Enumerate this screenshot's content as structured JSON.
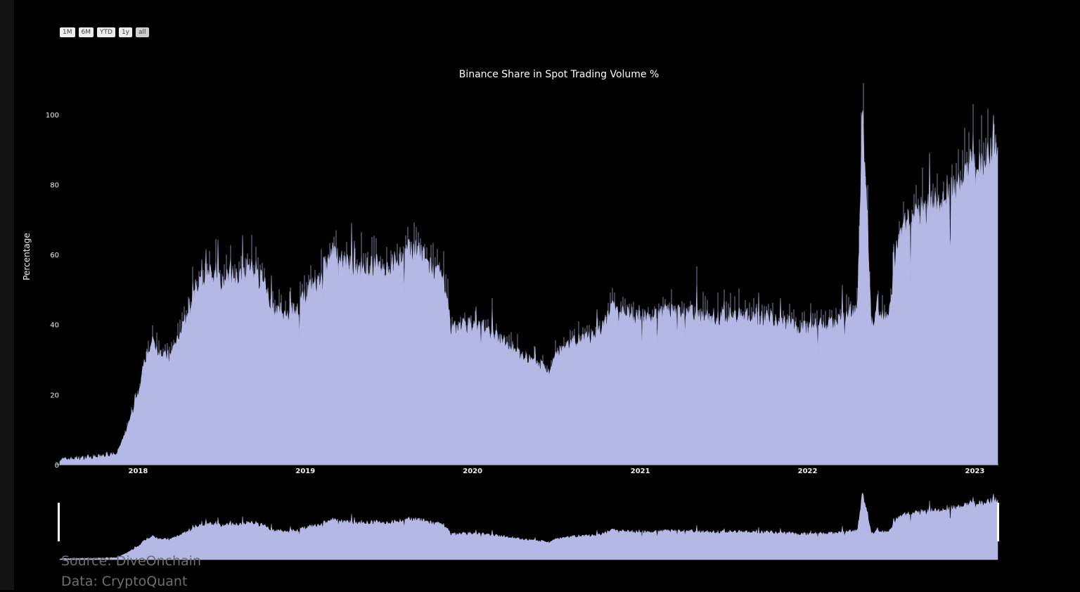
{
  "range_selector": [
    "1M",
    "6M",
    "YTD",
    "1y",
    "all"
  ],
  "active_range": "all",
  "source": {
    "line1": "Source: DiveOnchain",
    "line2": "Data: CryptoQuant"
  },
  "colors": {
    "background": "#000000",
    "fill": "#b3b9e4",
    "text": "#eeeeee"
  },
  "chart_data": {
    "type": "area",
    "title": "Binance Share in Spot Trading Volume %",
    "xlabel": "",
    "ylabel": "Percentage",
    "ylim": [
      0,
      113
    ],
    "xlim": [
      "2017-07-14",
      "2023-02-20"
    ],
    "yticks": [
      0,
      20,
      40,
      60,
      80,
      100
    ],
    "xticks": [
      "2018",
      "2019",
      "2020",
      "2021",
      "2022",
      "2023"
    ],
    "grid": false,
    "legend": "none",
    "range_slider": true,
    "series": [
      {
        "x": [
          "2017-07-14",
          "2017-09-15",
          "2017-10-15",
          "2017-11-15",
          "2017-12-01",
          "2017-12-20",
          "2018-01-05",
          "2018-01-15",
          "2018-02-01",
          "2018-02-20",
          "2018-03-10",
          "2018-04-01",
          "2018-04-20",
          "2018-05-10",
          "2018-06-01",
          "2018-07-01",
          "2018-08-01",
          "2018-09-01",
          "2018-10-01",
          "2018-10-25",
          "2018-11-20",
          "2018-12-15",
          "2019-01-10",
          "2019-02-01",
          "2019-03-01",
          "2019-04-01",
          "2019-05-01",
          "2019-06-01",
          "2019-07-01",
          "2019-08-01",
          "2019-09-01",
          "2019-09-20",
          "2019-10-10",
          "2019-11-01",
          "2019-11-15",
          "2019-12-01",
          "2020-01-01",
          "2020-02-01",
          "2020-03-01",
          "2020-04-01",
          "2020-05-01",
          "2020-06-01",
          "2020-06-15",
          "2020-07-01",
          "2020-08-01",
          "2020-09-01",
          "2020-10-01",
          "2020-11-01",
          "2020-12-01",
          "2021-01-01",
          "2021-02-01",
          "2021-03-01",
          "2021-04-01",
          "2021-05-01",
          "2021-06-01",
          "2021-07-01",
          "2021-08-01",
          "2021-09-01",
          "2021-10-01",
          "2021-11-01",
          "2021-12-01",
          "2022-01-01",
          "2022-02-01",
          "2022-03-01",
          "2022-04-01",
          "2022-04-20",
          "2022-05-01",
          "2022-05-10",
          "2022-05-20",
          "2022-06-01",
          "2022-06-20",
          "2022-07-01",
          "2022-07-15",
          "2022-08-01",
          "2022-09-01",
          "2022-10-01",
          "2022-11-01",
          "2022-12-01",
          "2023-01-01",
          "2023-02-01",
          "2023-02-20"
        ],
        "y": [
          1.5,
          2,
          2.5,
          3,
          8,
          15,
          22,
          30,
          35,
          32,
          30,
          38,
          42,
          50,
          55,
          52,
          54,
          56,
          52,
          44,
          42,
          45,
          50,
          52,
          60,
          58,
          55,
          57,
          56,
          60,
          62,
          58,
          55,
          52,
          38,
          40,
          40,
          38,
          36,
          33,
          30,
          28,
          25,
          32,
          35,
          36,
          37,
          45,
          43,
          42,
          42,
          44,
          44,
          43,
          42,
          42,
          43,
          42,
          42,
          41,
          40,
          39,
          40,
          40,
          43,
          45,
          100,
          78,
          40,
          44,
          42,
          44,
          64,
          68,
          72,
          74,
          77,
          80,
          85,
          88,
          93
        ]
      }
    ]
  }
}
